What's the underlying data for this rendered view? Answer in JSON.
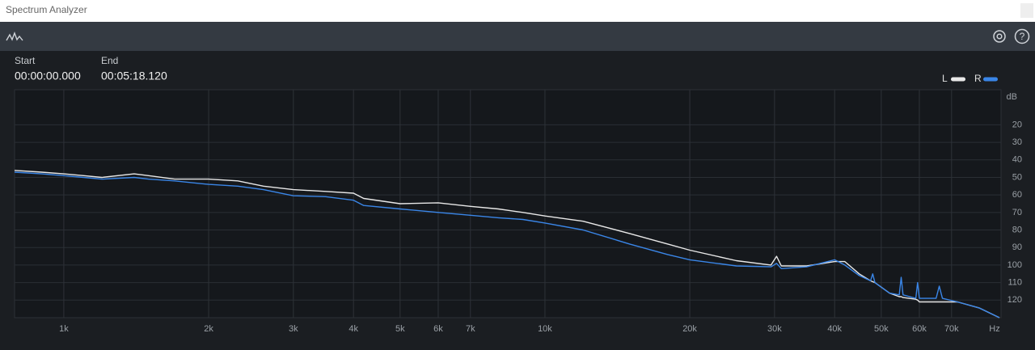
{
  "window": {
    "title": "Spectrum Analyzer"
  },
  "range": {
    "start_label": "Start",
    "start": "00:00:00.000",
    "end_label": "End",
    "end": "00:05:18.120"
  },
  "chart_data": {
    "type": "line",
    "x_log": true,
    "y_inverted": true,
    "grid": true,
    "legend": "top-right",
    "y_unit": "dB",
    "x_unit": "Hz",
    "x": [
      790,
      900,
      1000,
      1100,
      1200,
      1400,
      1500,
      1700,
      2000,
      2300,
      2600,
      3000,
      3500,
      4000,
      4200,
      5000,
      6000,
      7000,
      8000,
      9000,
      10000,
      12000,
      15000,
      18000,
      20000,
      25000,
      29500,
      30300,
      31000,
      35000,
      40000,
      42000,
      45000,
      47500,
      48000,
      48500,
      52000,
      54500,
      55000,
      55500,
      59000,
      59500,
      60000,
      65000,
      66000,
      67000,
      72000,
      80000,
      88000
    ],
    "series": [
      {
        "name": "L",
        "color": "#e8e8e8",
        "values": [
          46,
          47,
          48,
          49,
          50,
          48,
          49,
          51,
          51,
          52,
          55,
          57,
          58,
          59,
          62,
          65,
          64.5,
          66.5,
          68,
          70,
          72,
          75,
          82,
          88,
          91.5,
          97.5,
          100,
          95,
          100.5,
          100.5,
          98,
          98,
          105,
          109,
          109.5,
          110,
          116,
          118,
          118,
          118.5,
          119.5,
          120,
          121,
          121,
          121,
          121,
          121,
          124.5,
          130
        ]
      },
      {
        "name": "R",
        "color": "#3a86e8",
        "values": [
          47,
          48,
          49,
          50,
          51,
          50,
          51,
          52,
          54,
          55,
          57,
          60.5,
          61,
          63,
          66,
          68,
          70,
          71.6,
          73,
          74,
          76,
          80,
          88,
          94,
          97,
          100.5,
          101,
          99,
          102,
          101,
          97,
          100,
          106,
          109,
          105,
          110,
          116,
          117,
          107,
          117,
          119,
          110,
          119,
          119,
          112,
          119,
          121,
          124.5,
          130
        ]
      }
    ],
    "xlim": [
      790,
      88700
    ],
    "xticks": [
      {
        "value": 1000,
        "label": "1k"
      },
      {
        "value": 2000,
        "label": "2k"
      },
      {
        "value": 3000,
        "label": "3k"
      },
      {
        "value": 4000,
        "label": "4k"
      },
      {
        "value": 5000,
        "label": "5k"
      },
      {
        "value": 6000,
        "label": "6k"
      },
      {
        "value": 7000,
        "label": "7k"
      },
      {
        "value": 10000,
        "label": "10k"
      },
      {
        "value": 20000,
        "label": "20k"
      },
      {
        "value": 30000,
        "label": "30k"
      },
      {
        "value": 40000,
        "label": "40k"
      },
      {
        "value": 50000,
        "label": "50k"
      },
      {
        "value": 60000,
        "label": "60k"
      },
      {
        "value": 70000,
        "label": "70k"
      }
    ],
    "ylim": [
      0,
      130
    ],
    "yticks": [
      20,
      30,
      40,
      50,
      60,
      70,
      80,
      90,
      100,
      110,
      120
    ]
  }
}
